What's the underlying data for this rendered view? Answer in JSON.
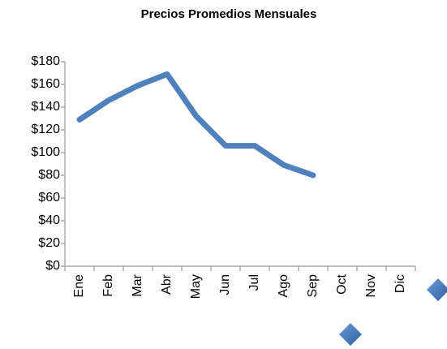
{
  "chart_data": {
    "type": "line",
    "title": "Precios Promedios Mensuales",
    "categories": [
      "Ene",
      "Feb",
      "Mar",
      "Abr",
      "May",
      "Jun",
      "Jul",
      "Ago",
      "Sep",
      "Oct",
      "Nov",
      "Dic"
    ],
    "values": [
      129,
      146,
      159,
      169,
      132,
      106,
      106,
      89,
      80,
      null,
      null,
      null
    ],
    "color": "#4f81bd",
    "ylim": [
      0,
      180
    ],
    "yticks": [
      {
        "value": 0,
        "label": "$0"
      },
      {
        "value": 20,
        "label": "$20"
      },
      {
        "value": 40,
        "label": "$40"
      },
      {
        "value": 60,
        "label": "$60"
      },
      {
        "value": 80,
        "label": "$80"
      },
      {
        "value": 100,
        "label": "$100"
      },
      {
        "value": 120,
        "label": "$120"
      },
      {
        "value": 140,
        "label": "$140"
      },
      {
        "value": 160,
        "label": "$160"
      },
      {
        "value": 180,
        "label": "$180"
      }
    ],
    "grid": false
  }
}
